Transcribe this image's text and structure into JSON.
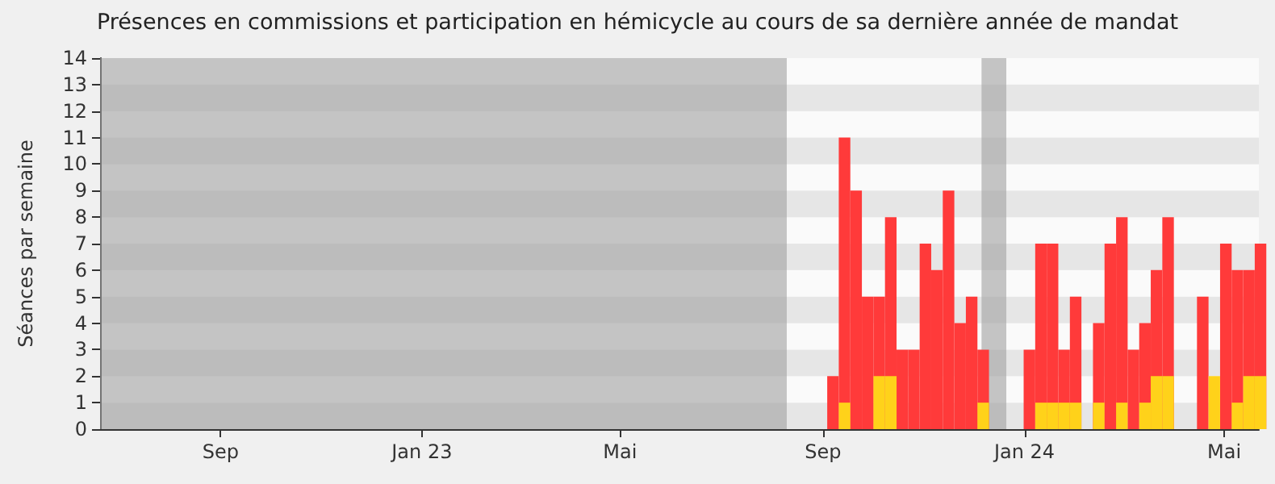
{
  "chart_data": {
    "type": "bar",
    "title": "Présences en commissions et participation en hémicycle au cours de sa dernière année de mandat",
    "ylabel": "Séances par semaine",
    "x": [
      "2023-09-04",
      "2023-09-11",
      "2023-09-18",
      "2023-09-25",
      "2023-10-02",
      "2023-10-09",
      "2023-10-16",
      "2023-10-23",
      "2023-10-30",
      "2023-11-06",
      "2023-11-13",
      "2023-11-20",
      "2023-11-27",
      "2023-12-04",
      "2023-12-11",
      "2023-12-18",
      "2023-12-25",
      "2024-01-01",
      "2024-01-08",
      "2024-01-15",
      "2024-01-22",
      "2024-01-29",
      "2024-02-05",
      "2024-02-12",
      "2024-02-19",
      "2024-02-26",
      "2024-03-04",
      "2024-03-11",
      "2024-03-18",
      "2024-03-25",
      "2024-04-01",
      "2024-04-08",
      "2024-04-15",
      "2024-04-22",
      "2024-04-29",
      "2024-05-06",
      "2024-05-13",
      "2024-05-20"
    ],
    "series": [
      {
        "color": "#ff3a3a",
        "values": [
          2,
          11,
          9,
          5,
          5,
          8,
          3,
          3,
          7,
          6,
          9,
          4,
          5,
          3,
          null,
          null,
          null,
          3,
          7,
          7,
          3,
          5,
          null,
          4,
          7,
          8,
          3,
          4,
          6,
          8,
          null,
          null,
          5,
          null,
          7,
          6,
          6,
          7
        ]
      },
      {
        "color": "#ffd21a",
        "values": [
          null,
          1,
          null,
          null,
          2,
          2,
          null,
          null,
          null,
          null,
          null,
          null,
          null,
          1,
          null,
          null,
          null,
          null,
          1,
          1,
          1,
          1,
          null,
          1,
          null,
          1,
          null,
          1,
          2,
          2,
          null,
          null,
          null,
          2,
          null,
          1,
          2,
          2
        ]
      }
    ],
    "xlim": [
      "2022-06-20",
      "2024-05-22"
    ],
    "xticks": [
      {
        "value": "2022-09-01",
        "label": "Sep"
      },
      {
        "value": "2023-01-01",
        "label": "Jan 23"
      },
      {
        "value": "2023-05-01",
        "label": "Mai"
      },
      {
        "value": "2023-09-01",
        "label": "Sep"
      },
      {
        "value": "2024-01-01",
        "label": "Jan 24"
      },
      {
        "value": "2024-05-01",
        "label": "Mai"
      }
    ],
    "ylim": [
      0,
      14
    ],
    "yticks": [
      0,
      1,
      2,
      3,
      4,
      5,
      6,
      7,
      8,
      9,
      10,
      11,
      12,
      13,
      14
    ],
    "bands": [
      {
        "axis": "x",
        "from": "2022-06-20",
        "to": "2023-08-10",
        "color": "#a0a0a0"
      },
      {
        "axis": "x",
        "from": "2023-12-06",
        "to": "2023-12-21",
        "color": "#a0a0a0"
      }
    ]
  }
}
